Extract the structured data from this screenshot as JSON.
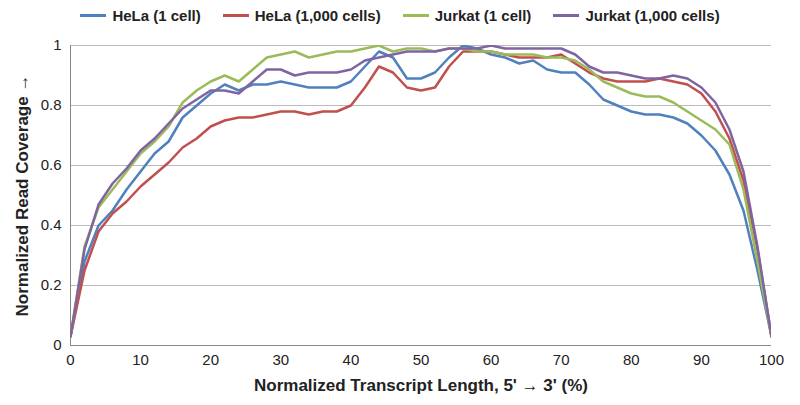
{
  "chart_data": {
    "type": "line",
    "x_label": "Normalized Transcript Length, 5' → 3' (%)",
    "y_label": "Normalized Read Coverage",
    "x": [
      0,
      2,
      4,
      6,
      8,
      10,
      12,
      14,
      16,
      18,
      20,
      22,
      24,
      26,
      28,
      30,
      32,
      34,
      36,
      38,
      40,
      42,
      44,
      46,
      48,
      50,
      52,
      54,
      56,
      58,
      60,
      62,
      64,
      66,
      68,
      70,
      72,
      74,
      76,
      78,
      80,
      82,
      84,
      86,
      88,
      90,
      92,
      94,
      96,
      98,
      100
    ],
    "series": [
      {
        "name": "HeLa (1 cell)",
        "color": "#4f81bd",
        "values": [
          0.03,
          0.28,
          0.4,
          0.45,
          0.52,
          0.58,
          0.64,
          0.68,
          0.76,
          0.8,
          0.84,
          0.87,
          0.85,
          0.87,
          0.87,
          0.88,
          0.87,
          0.86,
          0.86,
          0.86,
          0.88,
          0.93,
          0.98,
          0.96,
          0.89,
          0.89,
          0.91,
          0.96,
          1.0,
          0.99,
          0.97,
          0.96,
          0.94,
          0.95,
          0.92,
          0.91,
          0.91,
          0.87,
          0.82,
          0.8,
          0.78,
          0.77,
          0.77,
          0.76,
          0.74,
          0.7,
          0.65,
          0.57,
          0.45,
          0.25,
          0.03
        ]
      },
      {
        "name": "HeLa (1,000 cells)",
        "color": "#c0504d",
        "values": [
          0.03,
          0.25,
          0.38,
          0.44,
          0.48,
          0.53,
          0.57,
          0.61,
          0.66,
          0.69,
          0.73,
          0.75,
          0.76,
          0.76,
          0.77,
          0.78,
          0.78,
          0.77,
          0.78,
          0.78,
          0.8,
          0.86,
          0.93,
          0.91,
          0.86,
          0.85,
          0.86,
          0.93,
          0.98,
          0.98,
          0.98,
          0.97,
          0.96,
          0.96,
          0.96,
          0.97,
          0.94,
          0.91,
          0.89,
          0.88,
          0.88,
          0.88,
          0.89,
          0.88,
          0.87,
          0.84,
          0.78,
          0.69,
          0.55,
          0.32,
          0.03
        ]
      },
      {
        "name": "Jurkat (1 cell)",
        "color": "#9bbb59",
        "values": [
          0.03,
          0.33,
          0.46,
          0.52,
          0.58,
          0.64,
          0.68,
          0.73,
          0.81,
          0.85,
          0.88,
          0.9,
          0.88,
          0.92,
          0.96,
          0.97,
          0.98,
          0.96,
          0.97,
          0.98,
          0.98,
          0.99,
          1.0,
          0.98,
          0.99,
          0.99,
          0.98,
          0.99,
          0.99,
          0.98,
          0.98,
          0.97,
          0.97,
          0.97,
          0.96,
          0.96,
          0.95,
          0.92,
          0.88,
          0.86,
          0.84,
          0.83,
          0.83,
          0.81,
          0.78,
          0.75,
          0.72,
          0.67,
          0.52,
          0.28,
          0.03
        ]
      },
      {
        "name": "Jurkat (1,000 cells)",
        "color": "#8064a2",
        "values": [
          0.03,
          0.32,
          0.47,
          0.54,
          0.59,
          0.65,
          0.69,
          0.74,
          0.79,
          0.82,
          0.85,
          0.85,
          0.84,
          0.88,
          0.92,
          0.92,
          0.9,
          0.91,
          0.91,
          0.91,
          0.92,
          0.95,
          0.96,
          0.97,
          0.98,
          0.98,
          0.98,
          0.99,
          0.99,
          0.99,
          1.0,
          0.99,
          0.99,
          0.99,
          0.99,
          0.99,
          0.97,
          0.93,
          0.91,
          0.91,
          0.9,
          0.89,
          0.89,
          0.9,
          0.89,
          0.86,
          0.81,
          0.72,
          0.58,
          0.33,
          0.03
        ]
      }
    ],
    "xlim": [
      0,
      100
    ],
    "xticks": [
      0,
      10,
      20,
      30,
      40,
      50,
      60,
      70,
      80,
      90,
      100
    ],
    "ylim": [
      0,
      1
    ],
    "yticks": [
      0,
      0.2,
      0.4,
      0.6,
      0.8,
      1
    ],
    "grid": true,
    "legend": "top"
  }
}
